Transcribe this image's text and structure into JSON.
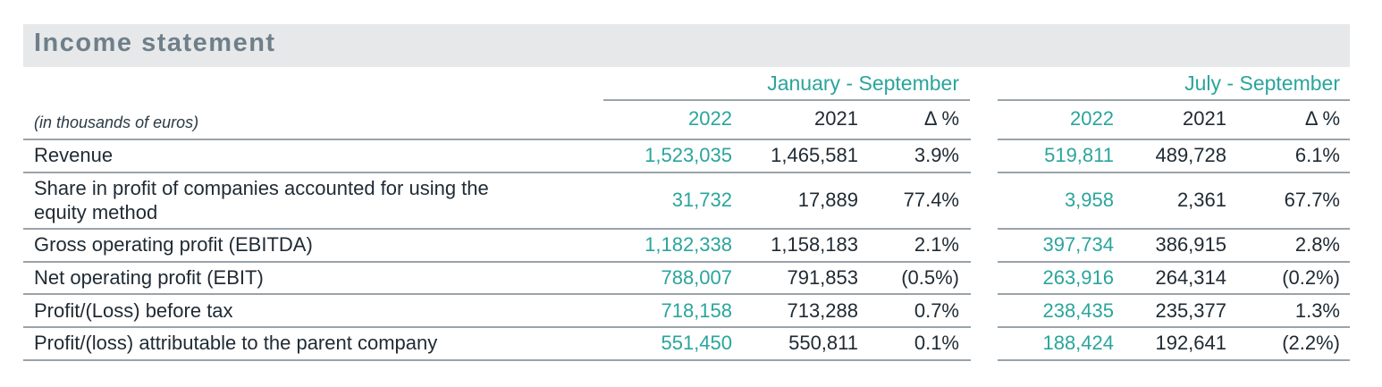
{
  "title": "Income statement",
  "units": "(in thousands of euros)",
  "periods": {
    "ytd": "January - September",
    "q3": "July - September"
  },
  "col_headers": {
    "ytd": [
      "2022",
      "2021",
      "Δ %"
    ],
    "q3": [
      "2022",
      "2021",
      "Δ %"
    ]
  },
  "rows": [
    {
      "label": "Revenue",
      "ytd": [
        "1,523,035",
        "1,465,581",
        "3.9%"
      ],
      "q3": [
        "519,811",
        "489,728",
        "6.1%"
      ]
    },
    {
      "label_line1": "Share in profit of companies accounted for using the",
      "label_line2": "equity method",
      "ytd": [
        "31,732",
        "17,889",
        "77.4%"
      ],
      "q3": [
        "3,958",
        "2,361",
        "67.7%"
      ]
    },
    {
      "label": "Gross operating profit (EBITDA)",
      "ytd": [
        "1,182,338",
        "1,158,183",
        "2.1%"
      ],
      "q3": [
        "397,734",
        "386,915",
        "2.8%"
      ]
    },
    {
      "label": "Net operating profit (EBIT)",
      "ytd": [
        "788,007",
        "791,853",
        "(0.5%)"
      ],
      "q3": [
        "263,916",
        "264,314",
        "(0.2%)"
      ]
    },
    {
      "label": "Profit/(Loss) before tax",
      "ytd": [
        "718,158",
        "713,288",
        "0.7%"
      ],
      "q3": [
        "238,435",
        "235,377",
        "1.3%"
      ]
    },
    {
      "label": "Profit/(loss) attributable to the parent company",
      "ytd": [
        "551,450",
        "550,811",
        "0.1%"
      ],
      "q3": [
        "188,424",
        "192,641",
        "(2.2%)"
      ]
    }
  ],
  "colors": {
    "accent": "#2aa59c",
    "title_bg": "#e6e8ea",
    "title_text": "#6f7f8a"
  }
}
